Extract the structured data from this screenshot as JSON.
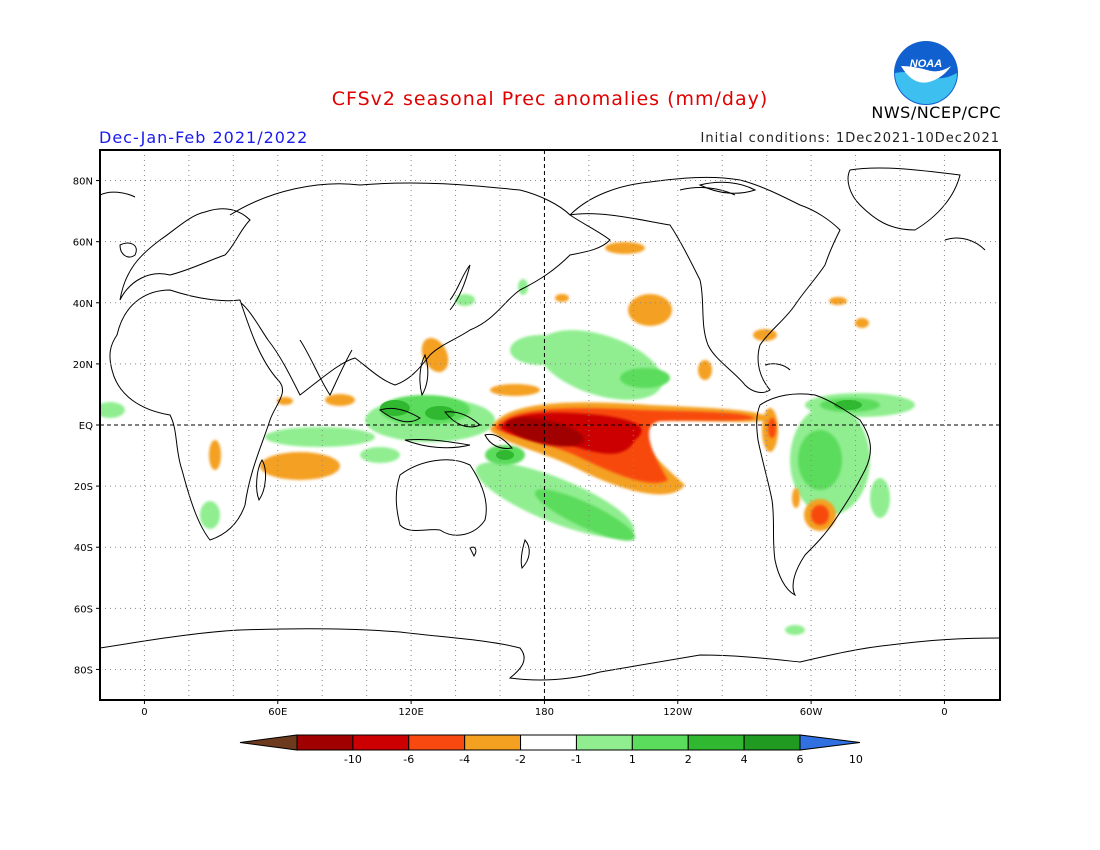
{
  "header": {
    "title": "CFSv2 seasonal Prec anomalies (mm/day)",
    "season": "Dec-Jan-Feb 2021/2022",
    "initial_conditions": "Initial conditions: 1Dec2021-10Dec2021",
    "organization": "NWS/NCEP/CPC",
    "logo_text": "NOAA"
  },
  "map": {
    "lat_labels": [
      {
        "label": "80N",
        "lat": 80
      },
      {
        "label": "60N",
        "lat": 60
      },
      {
        "label": "40N",
        "lat": 40
      },
      {
        "label": "20N",
        "lat": 20
      },
      {
        "label": "EQ",
        "lat": 0
      },
      {
        "label": "20S",
        "lat": -20
      },
      {
        "label": "40S",
        "lat": -40
      },
      {
        "label": "60S",
        "lat": -60
      },
      {
        "label": "80S",
        "lat": -80
      }
    ],
    "lon_labels": [
      {
        "label": "0",
        "lon": 0
      },
      {
        "label": "60E",
        "lon": 60
      },
      {
        "label": "120E",
        "lon": 120
      },
      {
        "label": "180",
        "lon": 180
      },
      {
        "label": "120W",
        "lon": 240
      },
      {
        "label": "60W",
        "lon": 300
      },
      {
        "label": "0",
        "lon": 360
      }
    ],
    "lon_range": [
      -20,
      385
    ],
    "lat_range": [
      -90,
      90
    ],
    "grid_lines": "dotted every 20 degrees",
    "reference_lines": [
      "equator",
      "180 meridian"
    ]
  },
  "colorbar": {
    "labels": [
      "-10",
      "-6",
      "-4",
      "-2",
      "-1",
      "1",
      "2",
      "4",
      "6",
      "10"
    ],
    "colors": [
      "#6e3a1e",
      "#a00000",
      "#cc0000",
      "#f84a10",
      "#f4a020",
      "#ffffff",
      "#90ee90",
      "#5cdc5c",
      "#30b830",
      "#209a20",
      "#3070e0"
    ]
  }
}
